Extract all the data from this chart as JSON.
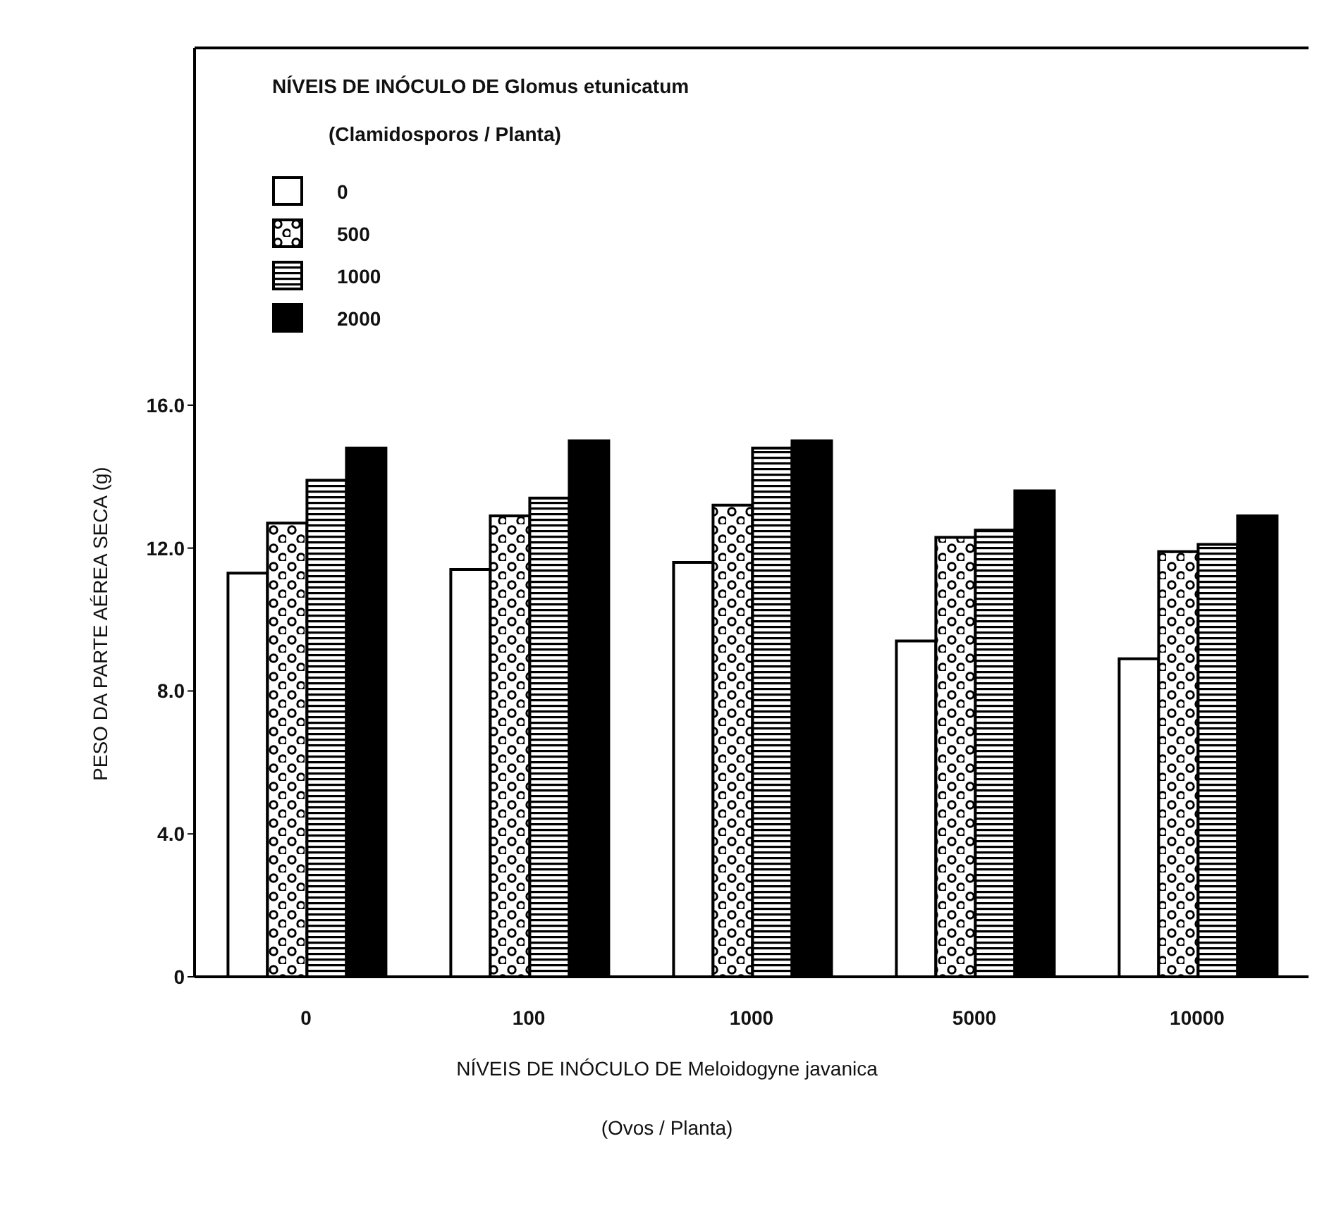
{
  "chart_data": {
    "type": "bar",
    "legend_title": "NÍVEIS DE INÓCULO DE Glomus etunicatum\n(Clamidosporos / Planta)",
    "xlabel": "NÍVEIS DE INÓCULO DE Meloidogyne javanica\n(Ovos / Planta)",
    "ylabel": "PESO DA PARTE AÉREA SECA (g)",
    "categories": [
      "0",
      "100",
      "1000",
      "5000",
      "10000"
    ],
    "series": [
      {
        "name": "0",
        "color": "#ffffff",
        "values": [
          11.3,
          11.4,
          11.6,
          9.4,
          8.9
        ]
      },
      {
        "name": "500",
        "color": "#000000",
        "values": [
          12.7,
          12.9,
          13.2,
          12.3,
          11.9
        ]
      },
      {
        "name": "1000",
        "color": "#000000",
        "values": [
          13.9,
          13.4,
          14.8,
          12.5,
          12.1
        ]
      },
      {
        "name": "2000",
        "color": "#000000",
        "values": [
          14.8,
          15.0,
          15.0,
          13.6,
          12.9
        ]
      }
    ],
    "ylim": [
      0,
      26
    ],
    "yticks": [
      {
        "value": 0,
        "label": "0"
      },
      {
        "value": 4,
        "label": "4.0"
      },
      {
        "value": 8,
        "label": "8.0"
      },
      {
        "value": 12,
        "label": "12.0"
      },
      {
        "value": 16,
        "label": "16.0"
      }
    ],
    "grid": false,
    "legend": "top left"
  }
}
